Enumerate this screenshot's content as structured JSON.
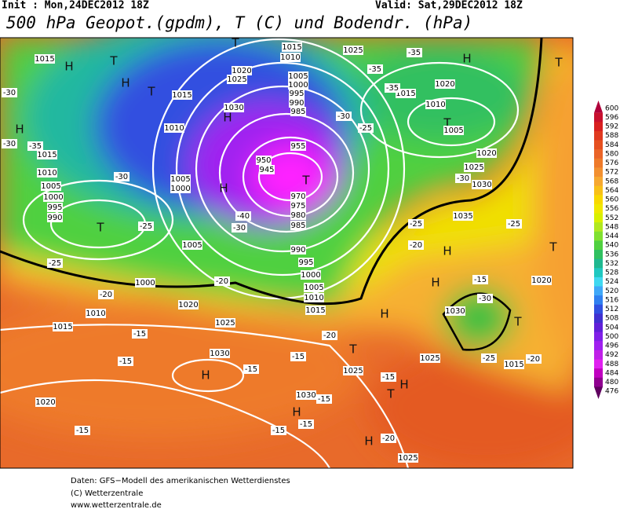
{
  "header": {
    "init": "Init : Mon,24DEC2012 18Z",
    "valid": "Valid: Sat,29DEC2012 18Z",
    "title": "500 hPa Geopot.(gpdm), T (C) und Bodendr. (hPa)"
  },
  "legend": {
    "ticks": [
      600,
      596,
      592,
      588,
      584,
      580,
      576,
      572,
      568,
      564,
      560,
      556,
      552,
      548,
      544,
      540,
      536,
      532,
      528,
      524,
      520,
      516,
      512,
      508,
      504,
      500,
      496,
      492,
      488,
      484,
      480,
      476
    ],
    "colors": [
      "#b0003a",
      "#c8102e",
      "#d82020",
      "#e03a20",
      "#e65020",
      "#ea6428",
      "#ee7a2a",
      "#f29030",
      "#f6a830",
      "#f8c018",
      "#f8d800",
      "#f0e800",
      "#d8f000",
      "#b0e820",
      "#80e030",
      "#50d040",
      "#30c060",
      "#20b890",
      "#20c8c0",
      "#40d8f0",
      "#40a8f8",
      "#3080f0",
      "#3050e0",
      "#4030d0",
      "#6020d8",
      "#8020e8",
      "#a020f0",
      "#c020e8",
      "#e020f0",
      "#c000c0",
      "#900090",
      "#600060"
    ]
  },
  "map": {
    "labels": [
      "H",
      "T",
      "H",
      "T",
      "H",
      "T",
      "H",
      "T",
      "T",
      "H",
      "T",
      "H",
      "T",
      "H",
      "H",
      "T",
      "H",
      "T",
      "T",
      "H",
      "H",
      "T",
      "H",
      "H",
      "1015",
      "1010",
      "1005",
      "1000",
      "995",
      "990",
      "1015",
      "1010",
      "1015",
      "1020",
      "1025",
      "1030",
      "1005",
      "1000",
      "1005",
      "1000",
      "1020",
      "1010",
      "1015",
      "1025",
      "1030",
      "1020",
      "1030",
      "1025",
      "1025",
      "1015",
      "1020",
      "1030",
      "1035",
      "1030",
      "1025",
      "1020",
      "1005",
      "1010",
      "1015",
      "1020",
      "1025",
      "1015",
      "1010",
      "1005",
      "1000",
      "995",
      "990",
      "985",
      "955",
      "950",
      "945",
      "970",
      "975",
      "980",
      "985",
      "990",
      "995",
      "1000",
      "1005",
      "1010",
      "1015",
      "1025",
      "-30",
      "-30",
      "-35",
      "-30",
      "-25",
      "-25",
      "-20",
      "-20",
      "-15",
      "-15",
      "-15",
      "-15",
      "-15",
      "-15",
      "-15",
      "-15",
      "-20",
      "-15",
      "-25",
      "-30",
      "-30",
      "-35",
      "-35",
      "-35",
      "-30",
      "-40",
      "-25",
      "-20",
      "-15",
      "-30",
      "-25",
      "-20",
      "-20",
      "-25"
    ]
  },
  "footer": {
    "lines": [
      "Daten: GFS−Modell des amerikanischen Wetterdienstes",
      "(C) Wetterzentrale",
      "www.wetterzentrale.de"
    ]
  }
}
